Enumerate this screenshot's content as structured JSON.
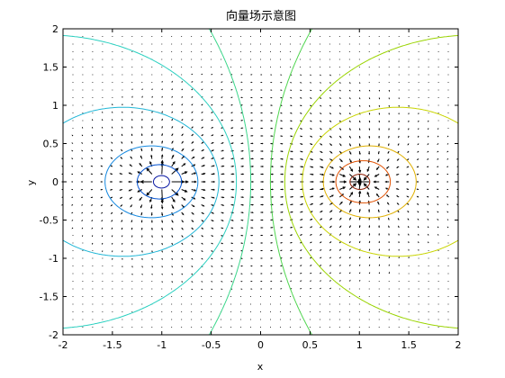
{
  "chart_data": {
    "type": "vector-field-contour",
    "title": "向量场示意图",
    "xlabel": "x",
    "ylabel": "y",
    "xlim": [
      -2,
      2
    ],
    "ylim": [
      -2,
      2
    ],
    "xticks": [
      -2,
      -1.5,
      -1,
      -0.5,
      0,
      0.5,
      1,
      1.5,
      2
    ],
    "xtick_labels": [
      "-2",
      "-1.5",
      "-1",
      "-0.5",
      "0",
      "0.5",
      "1",
      "1.5",
      "2"
    ],
    "yticks": [
      -2,
      -1.5,
      -1,
      -0.5,
      0,
      0.5,
      1,
      1.5,
      2
    ],
    "ytick_labels": [
      "-2",
      "-1.5",
      "-1",
      "-0.5",
      "0",
      "0.5",
      "1",
      "1.5",
      "2"
    ],
    "grid": false,
    "field": {
      "source": {
        "x": 1,
        "y": 0
      },
      "sink": {
        "x": -1,
        "y": 0
      },
      "grid_step": 0.1,
      "arrow_color": "#000000"
    },
    "contours": [
      {
        "level": 5.0,
        "color": "#000000"
      },
      {
        "level": 3.0,
        "color": "#8b1a00"
      },
      {
        "level": 2.0,
        "color": "#e05000"
      },
      {
        "level": 1.5,
        "color": "#e0b000"
      },
      {
        "level": 0.9,
        "color": "#c8d400"
      },
      {
        "level": 0.5,
        "color": "#9ad400"
      },
      {
        "level": 0.2,
        "color": "#4fd64f"
      },
      {
        "level": -0.2,
        "color": "#3ad68a"
      },
      {
        "level": -0.5,
        "color": "#2ad0c0"
      },
      {
        "level": -0.9,
        "color": "#20b6d6"
      },
      {
        "level": -1.5,
        "color": "#1488e0"
      },
      {
        "level": -2.2,
        "color": "#0050d0"
      },
      {
        "level": -3.2,
        "color": "#0010a0"
      }
    ]
  }
}
